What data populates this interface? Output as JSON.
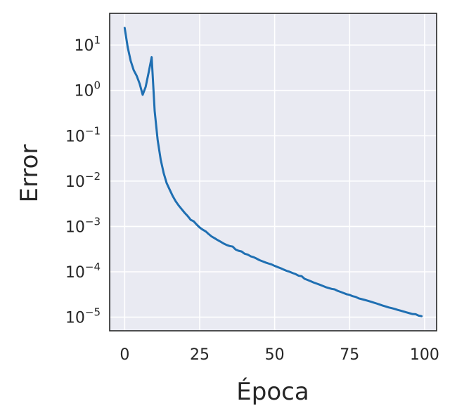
{
  "chart_data": {
    "type": "line",
    "title": "",
    "xlabel": "Época",
    "ylabel": "Error",
    "y_scale": "log",
    "xlim": [
      -5,
      104
    ],
    "ylim": [
      5e-06,
      50
    ],
    "grid": true,
    "legend": "none",
    "colors": {
      "background": "#e9eaf2",
      "grid": "#ffffff",
      "line": "#1f6fb2",
      "frame": "#262626"
    },
    "x_ticks": [
      {
        "value": 0,
        "label": "0"
      },
      {
        "value": 25,
        "label": "25"
      },
      {
        "value": 50,
        "label": "50"
      },
      {
        "value": 75,
        "label": "75"
      },
      {
        "value": 100,
        "label": "100"
      }
    ],
    "y_ticks": [
      {
        "value": 10,
        "base": "10",
        "exp": "1"
      },
      {
        "value": 1,
        "base": "10",
        "exp": "0"
      },
      {
        "value": 0.1,
        "base": "10",
        "exp": "−1"
      },
      {
        "value": 0.01,
        "base": "10",
        "exp": "−2"
      },
      {
        "value": 0.001,
        "base": "10",
        "exp": "−3"
      },
      {
        "value": 0.0001,
        "base": "10",
        "exp": "−4"
      },
      {
        "value": 1e-05,
        "base": "10",
        "exp": "−5"
      }
    ],
    "series": [
      {
        "x": [
          0,
          1,
          2,
          3,
          4,
          5,
          6,
          7,
          8,
          9,
          10,
          11,
          12,
          13,
          14,
          15,
          16,
          17,
          18,
          19,
          20,
          21,
          22,
          23,
          24,
          25,
          26,
          27,
          28,
          29,
          30,
          31,
          32,
          33,
          34,
          35,
          36,
          37,
          38,
          39,
          40,
          41,
          42,
          43,
          44,
          45,
          46,
          47,
          48,
          49,
          50,
          51,
          52,
          53,
          54,
          55,
          56,
          57,
          58,
          59,
          60,
          61,
          62,
          63,
          64,
          65,
          66,
          67,
          68,
          69,
          70,
          71,
          72,
          73,
          74,
          75,
          76,
          77,
          78,
          79,
          80,
          81,
          82,
          83,
          84,
          85,
          86,
          87,
          88,
          89,
          90,
          91,
          92,
          93,
          94,
          95,
          96,
          97,
          98,
          99
        ],
        "y": [
          24,
          9,
          4.5,
          2.8,
          2.1,
          1.4,
          0.8,
          1.2,
          2.5,
          5.4,
          0.35,
          0.08,
          0.03,
          0.015,
          0.009,
          0.0065,
          0.0047,
          0.0036,
          0.0029,
          0.0024,
          0.002,
          0.0017,
          0.0014,
          0.0013,
          0.0011,
          0.00095,
          0.00085,
          0.00078,
          0.00068,
          0.0006,
          0.00055,
          0.0005,
          0.00046,
          0.00042,
          0.00039,
          0.00037,
          0.00036,
          0.00031,
          0.00029,
          0.00028,
          0.00025,
          0.00024,
          0.00022,
          0.00021,
          0.000195,
          0.00018,
          0.00017,
          0.00016,
          0.000152,
          0.000145,
          0.000135,
          0.000127,
          0.00012,
          0.000112,
          0.000105,
          0.0001,
          9.4e-05,
          8.9e-05,
          8.2e-05,
          8e-05,
          7e-05,
          6.6e-05,
          6.2e-05,
          5.8e-05,
          5.5e-05,
          5.2e-05,
          4.9e-05,
          4.6e-05,
          4.4e-05,
          4.2e-05,
          4.1e-05,
          3.8e-05,
          3.6e-05,
          3.4e-05,
          3.2e-05,
          3.1e-05,
          2.9e-05,
          2.8e-05,
          2.6e-05,
          2.5e-05,
          2.4e-05,
          2.3e-05,
          2.2e-05,
          2.1e-05,
          2e-05,
          1.9e-05,
          1.8e-05,
          1.72e-05,
          1.64e-05,
          1.58e-05,
          1.52e-05,
          1.45e-05,
          1.39e-05,
          1.33e-05,
          1.27e-05,
          1.22e-05,
          1.17e-05,
          1.16e-05,
          1.08e-05,
          1.05e-05
        ]
      }
    ]
  }
}
